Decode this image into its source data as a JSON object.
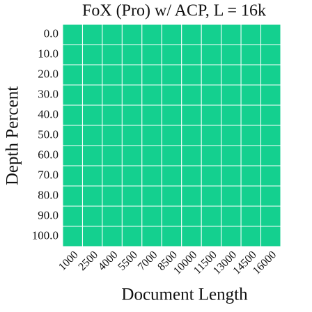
{
  "chart_data": {
    "type": "heatmap",
    "title": "FoX (Pro) w/ ACP, L = 16k",
    "x_label": "Document Length",
    "y_label": "Depth Percent",
    "x_categories": [
      "1000",
      "2500",
      "4000",
      "5500",
      "7000",
      "8500",
      "10000",
      "11500",
      "13000",
      "14500",
      "16000"
    ],
    "y_categories": [
      "0.0",
      "10.0",
      "20.0",
      "30.0",
      "40.0",
      "50.0",
      "60.0",
      "70.0",
      "80.0",
      "90.0",
      "100.0"
    ],
    "color": "#14d08f",
    "values": [
      [
        1,
        1,
        1,
        1,
        1,
        1,
        1,
        1,
        1,
        1,
        1
      ],
      [
        1,
        1,
        1,
        1,
        1,
        1,
        1,
        1,
        1,
        1,
        1
      ],
      [
        1,
        1,
        1,
        1,
        1,
        1,
        1,
        1,
        1,
        1,
        1
      ],
      [
        1,
        1,
        1,
        1,
        1,
        1,
        1,
        1,
        1,
        1,
        1
      ],
      [
        1,
        1,
        1,
        1,
        1,
        1,
        1,
        1,
        1,
        1,
        1
      ],
      [
        1,
        1,
        1,
        1,
        1,
        1,
        1,
        1,
        1,
        1,
        1
      ],
      [
        1,
        1,
        1,
        1,
        1,
        1,
        1,
        1,
        1,
        1,
        1
      ],
      [
        1,
        1,
        1,
        1,
        1,
        1,
        1,
        1,
        1,
        1,
        1
      ],
      [
        1,
        1,
        1,
        1,
        1,
        1,
        1,
        1,
        1,
        1,
        1
      ],
      [
        1,
        1,
        1,
        1,
        1,
        1,
        1,
        1,
        1,
        1,
        1
      ],
      [
        1,
        1,
        1,
        1,
        1,
        1,
        1,
        1,
        1,
        1,
        1
      ]
    ]
  }
}
